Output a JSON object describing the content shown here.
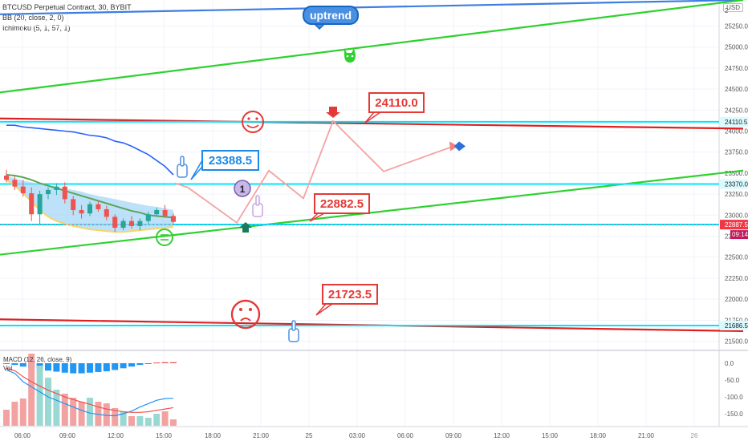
{
  "header": {
    "symbol_line": "BTCUSD Perpetual Contract, 30, BYBIT",
    "indicator_1": "BB (20, close, 2, 0)",
    "indicator_2": "Ichimoku (5, 1, 57, 1)",
    "currency": "USD"
  },
  "lower_pane": {
    "macd_label": "MACD (12, 26, close, 9)",
    "vol_label": "Vol",
    "y_ticks": [
      "0.0",
      "-50.0",
      "-100.0",
      "-150.0"
    ],
    "y_values": [
      0,
      -50,
      -100,
      -150
    ]
  },
  "chart_data": {
    "type": "candlestick",
    "price_axis": {
      "min": 21400,
      "max": 25560,
      "ticks": [
        21500,
        21750,
        22000,
        22250,
        22500,
        22750,
        23000,
        23250,
        23500,
        23750,
        24000,
        24250,
        24500,
        24750,
        25000,
        25250
      ],
      "tick_labels": [
        "21500.0",
        "21750.0",
        "22000.0",
        "22250.0",
        "22500.0",
        "22750.0",
        "23000.0",
        "23250.0",
        "23500.0",
        "23750.0",
        "24000.0",
        "24250.0",
        "24500.0",
        "24750.0",
        "25000.0",
        "25250.0"
      ],
      "top_label": "2"
    },
    "time_axis": {
      "labels": [
        "06:00",
        "09:00",
        "12:00",
        "15:00",
        "18:00",
        "21:00",
        "25",
        "03:00",
        "06:00",
        "09:00",
        "12:00",
        "15:00",
        "18:00",
        "21:00",
        "26"
      ],
      "highlight": "26"
    },
    "candles": [
      {
        "o": 23470,
        "h": 23540,
        "l": 23390,
        "c": 23420
      },
      {
        "o": 23420,
        "h": 23460,
        "l": 23300,
        "c": 23340
      },
      {
        "o": 23340,
        "h": 23420,
        "l": 23220,
        "c": 23260
      },
      {
        "o": 23260,
        "h": 23330,
        "l": 22930,
        "c": 23010
      },
      {
        "o": 23010,
        "h": 23290,
        "l": 22890,
        "c": 23250
      },
      {
        "o": 23250,
        "h": 23330,
        "l": 23190,
        "c": 23300
      },
      {
        "o": 23300,
        "h": 23380,
        "l": 23240,
        "c": 23340
      },
      {
        "o": 23340,
        "h": 23390,
        "l": 23140,
        "c": 23190
      },
      {
        "o": 23190,
        "h": 23230,
        "l": 23000,
        "c": 23060
      },
      {
        "o": 23060,
        "h": 23120,
        "l": 22960,
        "c": 23020
      },
      {
        "o": 23020,
        "h": 23160,
        "l": 22990,
        "c": 23130
      },
      {
        "o": 23130,
        "h": 23170,
        "l": 23040,
        "c": 23070
      },
      {
        "o": 23070,
        "h": 23110,
        "l": 22940,
        "c": 22980
      },
      {
        "o": 22980,
        "h": 23010,
        "l": 22800,
        "c": 22850
      },
      {
        "o": 22850,
        "h": 22960,
        "l": 22820,
        "c": 22930
      },
      {
        "o": 22930,
        "h": 22990,
        "l": 22840,
        "c": 22870
      },
      {
        "o": 22870,
        "h": 22960,
        "l": 22820,
        "c": 22930
      },
      {
        "o": 22930,
        "h": 23040,
        "l": 22900,
        "c": 23010
      },
      {
        "o": 23010,
        "h": 23090,
        "l": 22980,
        "c": 23060
      },
      {
        "o": 23060,
        "h": 23120,
        "l": 22970,
        "c": 22990
      },
      {
        "o": 22990,
        "h": 23020,
        "l": 22900,
        "c": 22920
      }
    ],
    "bb_middle": [
      23460,
      23440,
      23410,
      23390,
      23370,
      23350,
      23340,
      23320,
      23300,
      23280,
      23250,
      23230,
      23210,
      23190,
      23170,
      23150,
      23130,
      23110,
      23100,
      23080,
      23060
    ],
    "bb_lower": [
      23420,
      23350,
      23260,
      23160,
      23060,
      22980,
      22930,
      22900,
      22870,
      22850,
      22830,
      22820,
      22810,
      22800,
      22800,
      22810,
      22820,
      22830,
      22840,
      22850,
      22860
    ],
    "ichimoku_line": [
      23480,
      23470,
      23450,
      23420,
      23380,
      23350,
      23320,
      23290,
      23260,
      23230,
      23200,
      23170,
      23140,
      23110,
      23080,
      23050,
      23030,
      23000,
      22990,
      22980,
      22970
    ],
    "blue_line": [
      24070,
      24070,
      24050,
      24040,
      24030,
      24020,
      24010,
      24000,
      23990,
      23970,
      23950,
      23940,
      23920,
      23880,
      23860,
      23820,
      23770,
      23720,
      23650,
      23580,
      23480
    ],
    "levels": [
      {
        "label": "24110.5",
        "value": 24110.5,
        "color": "#00e5ff"
      },
      {
        "label": "23370.0",
        "value": 23370.0,
        "color": "#00e5ff"
      },
      {
        "label": "22889.0",
        "value": 22889.0,
        "color": "#00e5ff"
      },
      {
        "label": "21686.5",
        "value": 21686.5,
        "color": "#00e5ff"
      }
    ],
    "trendlines": [
      {
        "name": "uptrend",
        "color": "#3d7ee0",
        "from": {
          "x": 0,
          "y": 25390
        },
        "to": {
          "x": 926,
          "y": 25560
        }
      },
      {
        "name": "channel-top",
        "color": "#2ed12e",
        "from": {
          "x": 0,
          "y": 24460
        },
        "to": {
          "x": 926,
          "y": 25560
        }
      },
      {
        "name": "channel-bottom",
        "color": "#2ed12e",
        "from": {
          "x": 0,
          "y": 22530
        },
        "to": {
          "x": 926,
          "y": 23530
        }
      },
      {
        "name": "red-upper",
        "color": "#e02020",
        "from": {
          "x": 0,
          "y": 24150
        },
        "to": {
          "x": 926,
          "y": 24030
        }
      },
      {
        "name": "red-lower",
        "color": "#e02020",
        "from": {
          "x": 0,
          "y": 21760
        },
        "to": {
          "x": 926,
          "y": 21620
        }
      }
    ],
    "projection_path": [
      [
        218,
        23380
      ],
      [
        234,
        23330
      ],
      [
        295,
        22910
      ],
      [
        335,
        23530
      ],
      [
        378,
        23200
      ],
      [
        415,
        24120
      ],
      [
        478,
        23520
      ],
      [
        565,
        23820
      ]
    ],
    "annotations": [
      {
        "text": "uptrend",
        "color": "#1565c0"
      },
      {
        "text": "24110.0",
        "color": "#e53935"
      },
      {
        "text": "23388.5",
        "color": "#1e88e5"
      },
      {
        "text": "22882.5",
        "color": "#e53935"
      },
      {
        "text": "21723.5",
        "color": "#e53935"
      },
      {
        "text": "1",
        "color": "#222222"
      }
    ],
    "current_price": {
      "label": "22887.5",
      "value": 22887.5,
      "countdown": "09:14",
      "color": "#f23645"
    }
  },
  "colors": {
    "bull": "#26a69a",
    "bear": "#ef5350",
    "bb_fill": "#9fd4f5",
    "grid": "#f0f3fa",
    "level": "#00e5ff",
    "green": "#2ed12e",
    "red": "#e02020",
    "projection": "#f4a3a3",
    "blue": "#3d7ee0"
  }
}
